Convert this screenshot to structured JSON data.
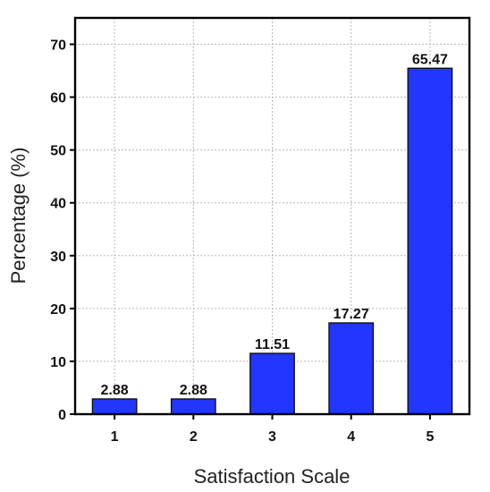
{
  "chart_data": {
    "type": "bar",
    "title": "",
    "xlabel": "Satisfaction Scale",
    "ylabel": "Percentage (%)",
    "categories": [
      "1",
      "2",
      "3",
      "4",
      "5"
    ],
    "values": [
      2.88,
      2.88,
      11.51,
      17.27,
      65.47
    ],
    "data_labels": [
      "2.88",
      "2.88",
      "11.51",
      "17.27",
      "65.47"
    ],
    "yticks": [
      0,
      10,
      20,
      30,
      40,
      50,
      60,
      70
    ],
    "ylim": [
      0,
      75
    ],
    "grid": true,
    "bar_color": "#2236ff",
    "bar_edge_color": "#111111"
  }
}
